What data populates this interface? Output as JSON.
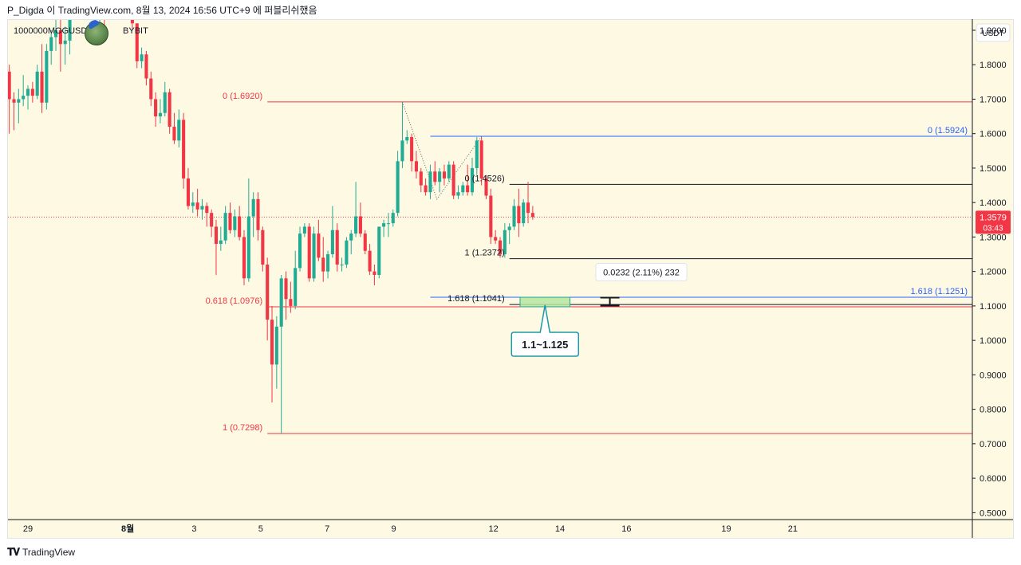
{
  "header": {
    "text": "P_Digda 이 TradingView.com, 8월 13, 2024 16:56 UTC+9 에 퍼블리쉬했음"
  },
  "symbol": {
    "name": "1000000MOGUSDT",
    "exchange": "BYBIT"
  },
  "footer": {
    "brand": "TradingView"
  },
  "colors": {
    "up": "#22ab94",
    "down": "#f23645",
    "fib_red": "#f23645",
    "fib_blue": "#2962ff",
    "fib_black": "#131722",
    "zone_fill": "#b6e6a0",
    "price_badge": "#f23645",
    "background": "#fdf9e3"
  },
  "chart_data": {
    "type": "candlestick",
    "quote_currency": "USDT",
    "y_axis": {
      "range": [
        0.48,
        1.93
      ],
      "ticks": [
        {
          "value": 1.9,
          "label": "1.9000"
        },
        {
          "value": 1.8,
          "label": "1.8000"
        },
        {
          "value": 1.7,
          "label": "1.7000"
        },
        {
          "value": 1.6,
          "label": "1.6000"
        },
        {
          "value": 1.5,
          "label": "1.5000"
        },
        {
          "value": 1.4,
          "label": "1.4000"
        },
        {
          "value": 1.3,
          "label": "1.3000"
        },
        {
          "value": 1.2,
          "label": "1.2000"
        },
        {
          "value": 1.1,
          "label": "1.1000"
        },
        {
          "value": 1.0,
          "label": "1.0000"
        },
        {
          "value": 0.9,
          "label": "0.9000"
        },
        {
          "value": 0.8,
          "label": "0.8000"
        },
        {
          "value": 0.7,
          "label": "0.7000"
        },
        {
          "value": 0.6,
          "label": "0.6000"
        },
        {
          "value": 0.5,
          "label": "0.5000"
        }
      ]
    },
    "x_axis": {
      "unit": "day index (0 = Jul 29)",
      "range": [
        -0.3,
        14.2
      ],
      "ticks": [
        {
          "value": 0,
          "label": "29"
        },
        {
          "value": 1.5,
          "label": "8월"
        },
        {
          "value": 2.5,
          "label": "3"
        },
        {
          "value": 3.5,
          "label": "5"
        },
        {
          "value": 4.5,
          "label": "7"
        },
        {
          "value": 5.5,
          "label": "9"
        },
        {
          "value": 7,
          "label": "12"
        },
        {
          "value": 8,
          "label": "14"
        },
        {
          "value": 9,
          "label": "16"
        },
        {
          "value": 10.5,
          "label": "19"
        },
        {
          "value": 11.5,
          "label": "21"
        }
      ]
    },
    "candles": [
      {
        "t": -0.56,
        "o": 1.68,
        "h": 1.74,
        "l": 1.62,
        "c": 1.72
      },
      {
        "t": -0.49,
        "o": 1.72,
        "h": 1.75,
        "l": 1.64,
        "c": 1.67
      },
      {
        "t": -0.42,
        "o": 1.67,
        "h": 1.75,
        "l": 1.62,
        "c": 1.71
      },
      {
        "t": -0.35,
        "o": 1.71,
        "h": 1.8,
        "l": 1.68,
        "c": 1.78
      },
      {
        "t": -0.28,
        "o": 1.78,
        "h": 1.8,
        "l": 1.6,
        "c": 1.7
      },
      {
        "t": -0.21,
        "o": 1.7,
        "h": 1.72,
        "l": 1.61,
        "c": 1.69
      },
      {
        "t": -0.14,
        "o": 1.69,
        "h": 1.73,
        "l": 1.63,
        "c": 1.7
      },
      {
        "t": -0.07,
        "o": 1.7,
        "h": 1.77,
        "l": 1.68,
        "c": 1.71
      },
      {
        "t": 0.0,
        "o": 1.71,
        "h": 1.74,
        "l": 1.67,
        "c": 1.73
      },
      {
        "t": 0.07,
        "o": 1.73,
        "h": 1.75,
        "l": 1.69,
        "c": 1.71
      },
      {
        "t": 0.14,
        "o": 1.71,
        "h": 1.8,
        "l": 1.7,
        "c": 1.78
      },
      {
        "t": 0.21,
        "o": 1.78,
        "h": 1.86,
        "l": 1.66,
        "c": 1.69
      },
      {
        "t": 0.28,
        "o": 1.69,
        "h": 1.86,
        "l": 1.67,
        "c": 1.84
      },
      {
        "t": 0.35,
        "o": 1.84,
        "h": 1.9,
        "l": 1.8,
        "c": 1.88
      },
      {
        "t": 0.42,
        "o": 1.88,
        "h": 1.96,
        "l": 1.84,
        "c": 1.9
      },
      {
        "t": 0.49,
        "o": 1.9,
        "h": 1.93,
        "l": 1.78,
        "c": 1.86
      },
      {
        "t": 0.56,
        "o": 1.86,
        "h": 1.91,
        "l": 1.8,
        "c": 1.87
      },
      {
        "t": 0.63,
        "o": 1.87,
        "h": 1.95,
        "l": 1.83,
        "c": 1.93
      },
      {
        "t": 1.01,
        "o": 1.95,
        "h": 1.99,
        "l": 1.9,
        "c": 1.93
      },
      {
        "t": 1.08,
        "o": 1.93,
        "h": 1.98,
        "l": 1.88,
        "c": 1.97
      },
      {
        "t": 1.15,
        "o": 1.97,
        "h": 1.99,
        "l": 1.88,
        "c": 1.96
      },
      {
        "t": 1.22,
        "o": 1.96,
        "h": 2.0,
        "l": 1.94,
        "c": 1.98
      },
      {
        "t": 1.57,
        "o": 1.96,
        "h": 1.99,
        "l": 1.9,
        "c": 1.92
      },
      {
        "t": 1.64,
        "o": 1.92,
        "h": 1.92,
        "l": 1.79,
        "c": 1.81
      },
      {
        "t": 1.71,
        "o": 1.81,
        "h": 1.85,
        "l": 1.79,
        "c": 1.83
      },
      {
        "t": 1.78,
        "o": 1.83,
        "h": 1.84,
        "l": 1.74,
        "c": 1.76
      },
      {
        "t": 1.85,
        "o": 1.76,
        "h": 1.78,
        "l": 1.68,
        "c": 1.7
      },
      {
        "t": 1.92,
        "o": 1.7,
        "h": 1.72,
        "l": 1.62,
        "c": 1.65
      },
      {
        "t": 1.99,
        "o": 1.65,
        "h": 1.7,
        "l": 1.63,
        "c": 1.66
      },
      {
        "t": 2.06,
        "o": 1.66,
        "h": 1.75,
        "l": 1.65,
        "c": 1.72
      },
      {
        "t": 2.13,
        "o": 1.72,
        "h": 1.73,
        "l": 1.6,
        "c": 1.62
      },
      {
        "t": 2.2,
        "o": 1.62,
        "h": 1.66,
        "l": 1.57,
        "c": 1.58
      },
      {
        "t": 2.27,
        "o": 1.58,
        "h": 1.67,
        "l": 1.56,
        "c": 1.64
      },
      {
        "t": 2.34,
        "o": 1.64,
        "h": 1.66,
        "l": 1.44,
        "c": 1.47
      },
      {
        "t": 2.41,
        "o": 1.47,
        "h": 1.5,
        "l": 1.38,
        "c": 1.39
      },
      {
        "t": 2.48,
        "o": 1.39,
        "h": 1.43,
        "l": 1.37,
        "c": 1.4
      },
      {
        "t": 2.55,
        "o": 1.4,
        "h": 1.44,
        "l": 1.36,
        "c": 1.38
      },
      {
        "t": 2.62,
        "o": 1.38,
        "h": 1.41,
        "l": 1.35,
        "c": 1.39
      },
      {
        "t": 2.69,
        "o": 1.39,
        "h": 1.4,
        "l": 1.33,
        "c": 1.37
      },
      {
        "t": 2.76,
        "o": 1.37,
        "h": 1.38,
        "l": 1.3,
        "c": 1.33
      },
      {
        "t": 2.83,
        "o": 1.33,
        "h": 1.35,
        "l": 1.19,
        "c": 1.28
      },
      {
        "t": 2.9,
        "o": 1.28,
        "h": 1.33,
        "l": 1.26,
        "c": 1.29
      },
      {
        "t": 2.97,
        "o": 1.29,
        "h": 1.39,
        "l": 1.28,
        "c": 1.37
      },
      {
        "t": 3.04,
        "o": 1.37,
        "h": 1.4,
        "l": 1.31,
        "c": 1.32
      },
      {
        "t": 3.11,
        "o": 1.32,
        "h": 1.38,
        "l": 1.3,
        "c": 1.36
      },
      {
        "t": 3.18,
        "o": 1.36,
        "h": 1.39,
        "l": 1.29,
        "c": 1.3
      },
      {
        "t": 3.25,
        "o": 1.3,
        "h": 1.32,
        "l": 1.16,
        "c": 1.18
      },
      {
        "t": 3.32,
        "o": 1.18,
        "h": 1.47,
        "l": 1.17,
        "c": 1.36
      },
      {
        "t": 3.39,
        "o": 1.36,
        "h": 1.43,
        "l": 1.3,
        "c": 1.41
      },
      {
        "t": 3.46,
        "o": 1.41,
        "h": 1.43,
        "l": 1.29,
        "c": 1.32
      },
      {
        "t": 3.53,
        "o": 1.32,
        "h": 1.33,
        "l": 1.2,
        "c": 1.22
      },
      {
        "t": 3.6,
        "o": 1.22,
        "h": 1.24,
        "l": 1.0,
        "c": 1.06
      },
      {
        "t": 3.67,
        "o": 1.06,
        "h": 1.1,
        "l": 0.82,
        "c": 0.93
      },
      {
        "t": 3.74,
        "o": 0.93,
        "h": 1.07,
        "l": 0.86,
        "c": 1.04
      },
      {
        "t": 3.81,
        "o": 1.04,
        "h": 1.19,
        "l": 0.73,
        "c": 1.18
      },
      {
        "t": 3.88,
        "o": 1.18,
        "h": 1.2,
        "l": 1.06,
        "c": 1.12
      },
      {
        "t": 3.95,
        "o": 1.12,
        "h": 1.17,
        "l": 1.08,
        "c": 1.1
      },
      {
        "t": 4.02,
        "o": 1.1,
        "h": 1.26,
        "l": 1.09,
        "c": 1.21
      },
      {
        "t": 4.09,
        "o": 1.21,
        "h": 1.33,
        "l": 1.2,
        "c": 1.31
      },
      {
        "t": 4.16,
        "o": 1.31,
        "h": 1.34,
        "l": 1.3,
        "c": 1.33
      },
      {
        "t": 4.23,
        "o": 1.33,
        "h": 1.34,
        "l": 1.17,
        "c": 1.18
      },
      {
        "t": 4.3,
        "o": 1.18,
        "h": 1.33,
        "l": 1.17,
        "c": 1.31
      },
      {
        "t": 4.37,
        "o": 1.31,
        "h": 1.35,
        "l": 1.23,
        "c": 1.24
      },
      {
        "t": 4.44,
        "o": 1.24,
        "h": 1.3,
        "l": 1.17,
        "c": 1.2
      },
      {
        "t": 4.51,
        "o": 1.2,
        "h": 1.26,
        "l": 1.18,
        "c": 1.25
      },
      {
        "t": 4.58,
        "o": 1.25,
        "h": 1.39,
        "l": 1.24,
        "c": 1.32
      },
      {
        "t": 4.65,
        "o": 1.32,
        "h": 1.34,
        "l": 1.2,
        "c": 1.22
      },
      {
        "t": 4.72,
        "o": 1.22,
        "h": 1.24,
        "l": 1.2,
        "c": 1.22
      },
      {
        "t": 4.79,
        "o": 1.22,
        "h": 1.3,
        "l": 1.21,
        "c": 1.29
      },
      {
        "t": 4.86,
        "o": 1.29,
        "h": 1.32,
        "l": 1.25,
        "c": 1.31
      },
      {
        "t": 4.93,
        "o": 1.31,
        "h": 1.46,
        "l": 1.3,
        "c": 1.36
      },
      {
        "t": 5.0,
        "o": 1.36,
        "h": 1.4,
        "l": 1.3,
        "c": 1.31
      },
      {
        "t": 5.07,
        "o": 1.31,
        "h": 1.32,
        "l": 1.25,
        "c": 1.26
      },
      {
        "t": 5.14,
        "o": 1.26,
        "h": 1.28,
        "l": 1.19,
        "c": 1.2
      },
      {
        "t": 5.21,
        "o": 1.2,
        "h": 1.22,
        "l": 1.16,
        "c": 1.19
      },
      {
        "t": 5.28,
        "o": 1.19,
        "h": 1.33,
        "l": 1.18,
        "c": 1.33
      },
      {
        "t": 5.35,
        "o": 1.33,
        "h": 1.35,
        "l": 1.3,
        "c": 1.34
      },
      {
        "t": 5.42,
        "o": 1.34,
        "h": 1.37,
        "l": 1.3,
        "c": 1.34
      },
      {
        "t": 5.49,
        "o": 1.34,
        "h": 1.38,
        "l": 1.33,
        "c": 1.37
      },
      {
        "t": 5.56,
        "o": 1.37,
        "h": 1.55,
        "l": 1.36,
        "c": 1.52
      },
      {
        "t": 5.63,
        "o": 1.52,
        "h": 1.69,
        "l": 1.5,
        "c": 1.58
      },
      {
        "t": 5.7,
        "o": 1.58,
        "h": 1.61,
        "l": 1.57,
        "c": 1.59
      },
      {
        "t": 5.77,
        "o": 1.59,
        "h": 1.6,
        "l": 1.49,
        "c": 1.52
      },
      {
        "t": 5.84,
        "o": 1.52,
        "h": 1.55,
        "l": 1.47,
        "c": 1.49
      },
      {
        "t": 5.91,
        "o": 1.49,
        "h": 1.5,
        "l": 1.43,
        "c": 1.45
      },
      {
        "t": 5.98,
        "o": 1.45,
        "h": 1.47,
        "l": 1.42,
        "c": 1.43
      },
      {
        "t": 6.05,
        "o": 1.43,
        "h": 1.51,
        "l": 1.41,
        "c": 1.49
      },
      {
        "t": 6.12,
        "o": 1.49,
        "h": 1.52,
        "l": 1.45,
        "c": 1.46
      },
      {
        "t": 6.19,
        "o": 1.46,
        "h": 1.5,
        "l": 1.43,
        "c": 1.49
      },
      {
        "t": 6.26,
        "o": 1.49,
        "h": 1.51,
        "l": 1.45,
        "c": 1.47
      },
      {
        "t": 6.33,
        "o": 1.47,
        "h": 1.52,
        "l": 1.46,
        "c": 1.51
      },
      {
        "t": 6.4,
        "o": 1.51,
        "h": 1.52,
        "l": 1.41,
        "c": 1.42
      },
      {
        "t": 6.47,
        "o": 1.42,
        "h": 1.45,
        "l": 1.41,
        "c": 1.43
      },
      {
        "t": 6.54,
        "o": 1.43,
        "h": 1.46,
        "l": 1.42,
        "c": 1.45
      },
      {
        "t": 6.61,
        "o": 1.45,
        "h": 1.51,
        "l": 1.42,
        "c": 1.43
      },
      {
        "t": 6.68,
        "o": 1.43,
        "h": 1.53,
        "l": 1.42,
        "c": 1.5
      },
      {
        "t": 6.75,
        "o": 1.5,
        "h": 1.59,
        "l": 1.48,
        "c": 1.58
      },
      {
        "t": 6.82,
        "o": 1.58,
        "h": 1.59,
        "l": 1.45,
        "c": 1.47
      },
      {
        "t": 6.89,
        "o": 1.47,
        "h": 1.48,
        "l": 1.41,
        "c": 1.42
      },
      {
        "t": 6.96,
        "o": 1.42,
        "h": 1.44,
        "l": 1.28,
        "c": 1.3
      },
      {
        "t": 7.03,
        "o": 1.3,
        "h": 1.32,
        "l": 1.28,
        "c": 1.29
      },
      {
        "t": 7.1,
        "o": 1.29,
        "h": 1.3,
        "l": 1.24,
        "c": 1.25
      },
      {
        "t": 7.17,
        "o": 1.25,
        "h": 1.34,
        "l": 1.24,
        "c": 1.32
      },
      {
        "t": 7.24,
        "o": 1.32,
        "h": 1.34,
        "l": 1.28,
        "c": 1.33
      },
      {
        "t": 7.31,
        "o": 1.33,
        "h": 1.41,
        "l": 1.32,
        "c": 1.39
      },
      {
        "t": 7.38,
        "o": 1.39,
        "h": 1.44,
        "l": 1.3,
        "c": 1.34
      },
      {
        "t": 7.45,
        "o": 1.34,
        "h": 1.41,
        "l": 1.33,
        "c": 1.4
      },
      {
        "t": 7.52,
        "o": 1.4,
        "h": 1.46,
        "l": 1.34,
        "c": 1.37
      },
      {
        "t": 7.59,
        "o": 1.37,
        "h": 1.39,
        "l": 1.35,
        "c": 1.3579
      }
    ],
    "current_price": {
      "value": 1.3579,
      "label": "1.3579",
      "countdown": "03:43"
    },
    "fib_levels": [
      {
        "label": "0 (1.6920)",
        "value": 1.692,
        "x_start": 3.6,
        "x_end": 14.2,
        "color": "#f23645",
        "label_align": "left-of-start"
      },
      {
        "label": "0.618 (1.0976)",
        "value": 1.0976,
        "x_start": 3.6,
        "x_end": 14.2,
        "color": "#f23645",
        "label_align": "left-of-start"
      },
      {
        "label": "1 (0.7298)",
        "value": 0.7298,
        "x_start": 3.6,
        "x_end": 14.2,
        "color": "#f23645",
        "label_align": "left-of-start"
      },
      {
        "label": "0 (1.5924)",
        "value": 1.5924,
        "x_start": 6.05,
        "x_end": 14.2,
        "color": "#2962ff",
        "label_align": "right-end"
      },
      {
        "label": "1.618 (1.1251)",
        "value": 1.1251,
        "x_start": 6.05,
        "x_end": 14.2,
        "color": "#2962ff",
        "label_align": "right-end"
      },
      {
        "label": "0 (1.4526)",
        "value": 1.4526,
        "x_start": 7.24,
        "x_end": 14.2,
        "color": "#131722",
        "label_align": "left-of-start"
      },
      {
        "label": "1 (1.2372)",
        "value": 1.2372,
        "x_start": 7.24,
        "x_end": 14.2,
        "color": "#131722",
        "label_align": "left-of-start"
      },
      {
        "label": "1.618 (1.1041)",
        "value": 1.1041,
        "x_start": 7.24,
        "x_end": 14.2,
        "color": "#131722",
        "label_align": "left-of-start"
      }
    ],
    "target_zone": {
      "x_start": 7.4,
      "x_end": 8.15,
      "y_low": 1.0976,
      "y_high": 1.1251,
      "label": "1.1~1.125"
    },
    "measure": {
      "x": 8.75,
      "y_low": 1.1009,
      "y_high": 1.1241,
      "label": "0.0232 (2.11%) 232"
    },
    "swing_path": [
      {
        "t": 5.63,
        "p": 1.692
      },
      {
        "t": 6.15,
        "p": 1.41
      },
      {
        "t": 6.82,
        "p": 1.592
      }
    ]
  }
}
